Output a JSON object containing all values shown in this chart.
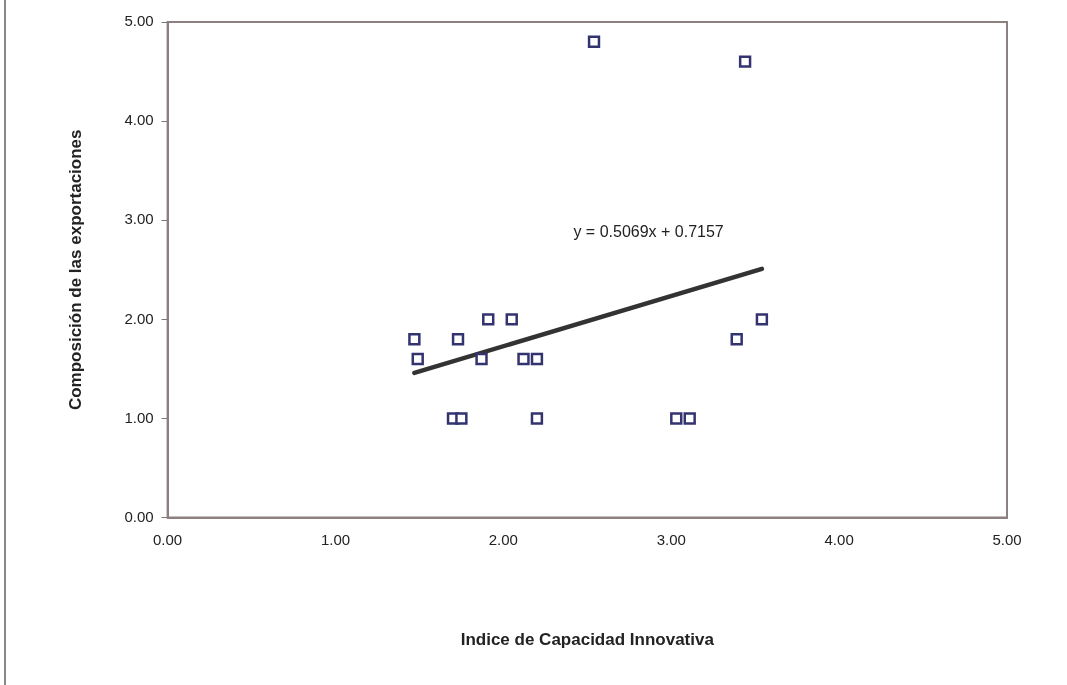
{
  "chart_data": {
    "type": "scatter",
    "xlabel": "Indice de Capacidad Innovativa",
    "ylabel": "Composición de las exportaciones",
    "xlim": [
      0,
      5
    ],
    "ylim": [
      0,
      5
    ],
    "xticks": [
      {
        "value": 0,
        "label": "0.00"
      },
      {
        "value": 1,
        "label": "1.00"
      },
      {
        "value": 2,
        "label": "2.00"
      },
      {
        "value": 3,
        "label": "3.00"
      },
      {
        "value": 4,
        "label": "4.00"
      },
      {
        "value": 5,
        "label": "5.00"
      }
    ],
    "yticks": [
      {
        "value": 0,
        "label": "0.00"
      },
      {
        "value": 1,
        "label": "1.00"
      },
      {
        "value": 2,
        "label": "2.00"
      },
      {
        "value": 3,
        "label": "3.00"
      },
      {
        "value": 4,
        "label": "4.00"
      },
      {
        "value": 5,
        "label": "5.00"
      }
    ],
    "grid": false,
    "legend": false,
    "marker": "square",
    "series": [
      {
        "color": "#333370",
        "x": [
          1.47,
          1.49,
          1.7,
          1.75,
          1.73,
          1.87,
          1.91,
          2.05,
          2.12,
          2.2,
          2.2,
          2.54,
          3.44,
          3.54,
          3.39,
          3.03,
          3.11
        ],
        "values": [
          1.8,
          1.6,
          1.0,
          1.0,
          1.8,
          1.6,
          2.0,
          2.0,
          1.6,
          1.6,
          1.0,
          4.8,
          4.6,
          2.0,
          1.8,
          1.0,
          1.0
        ]
      },
      {
        "type": "line",
        "color": "#333333",
        "marker": "none",
        "line_style": "solid",
        "x": [
          1.47,
          3.54
        ],
        "values": [
          1.46,
          2.51
        ]
      }
    ],
    "annotations": [
      "y = 0.5069x + 0.7157"
    ]
  }
}
